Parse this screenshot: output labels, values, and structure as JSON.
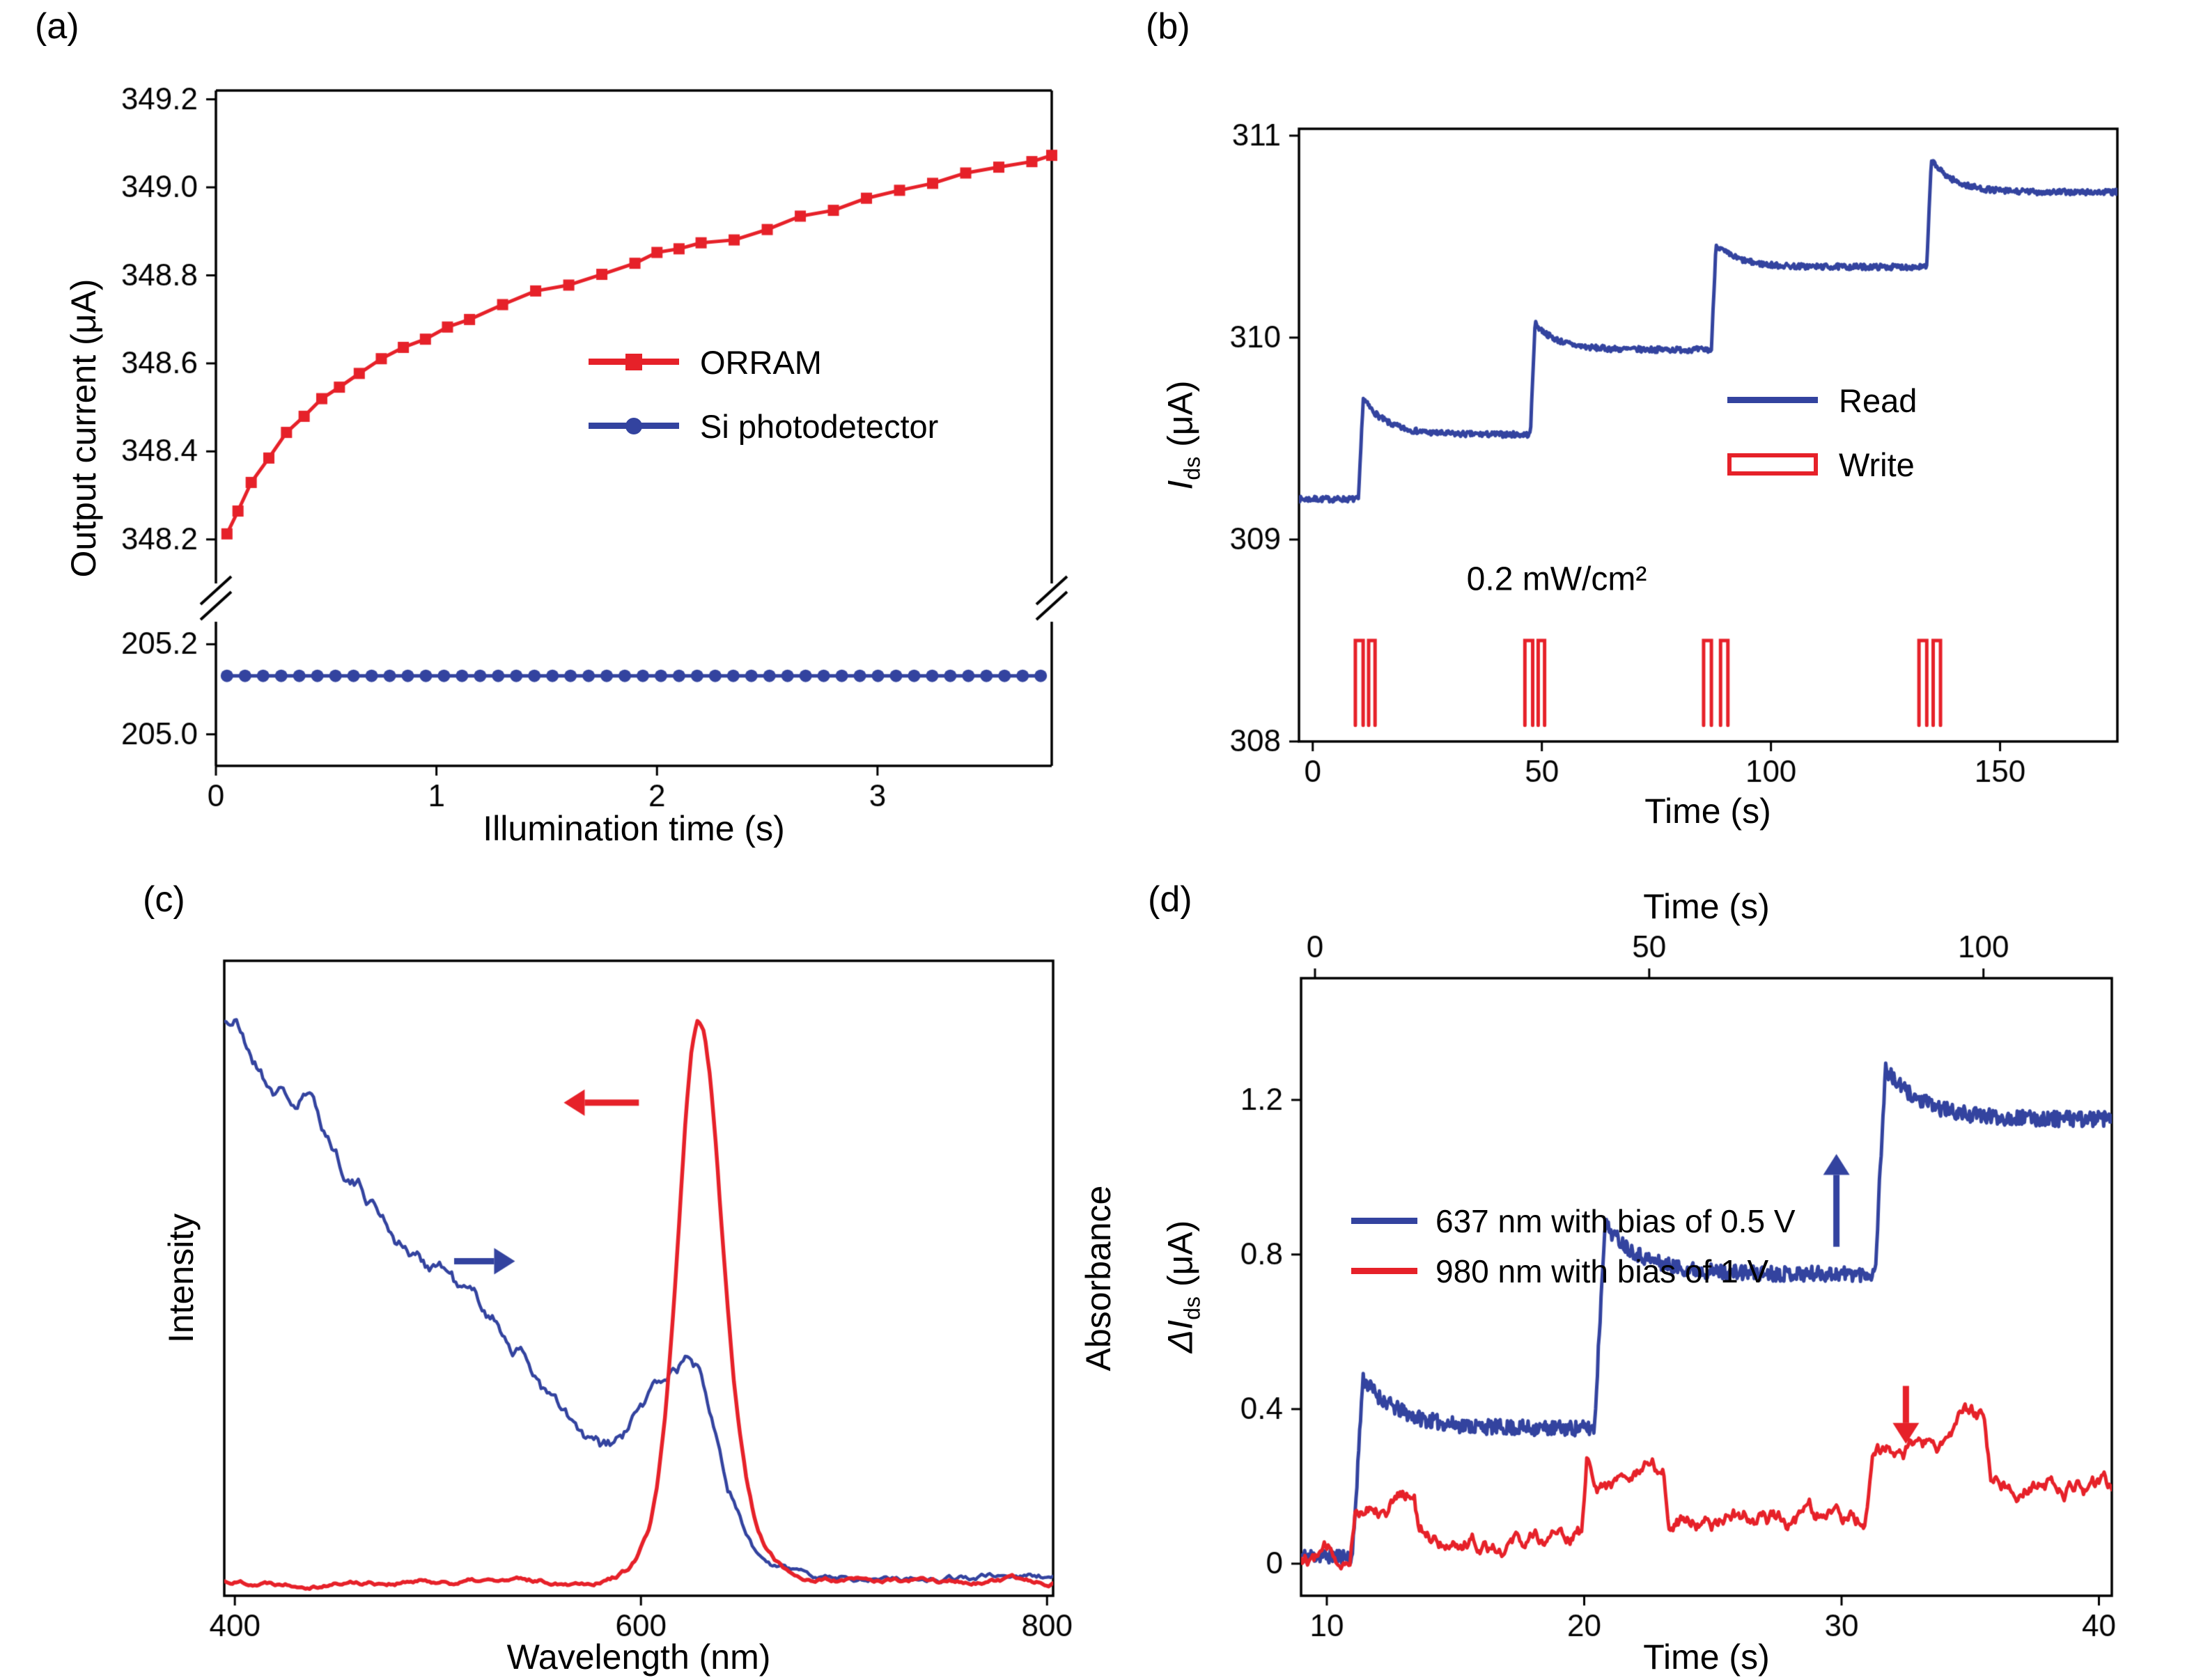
{
  "colors": {
    "red": "#e62129",
    "blue": "#33439f",
    "axis": "#000000"
  },
  "chart_data": [
    {
      "id": "a",
      "type": "line",
      "panel_label": "(a)",
      "xlabel": "Illumination time (s)",
      "ylabel": "Output current (μA)",
      "xlim": [
        0,
        3.79
      ],
      "xticks": [
        0,
        1,
        2,
        3
      ],
      "axis_break": {
        "top_ylim": [
          348.1,
          349.22
        ],
        "top_yticks": [
          349.2,
          349.0,
          348.8,
          348.6,
          348.4,
          348.2
        ],
        "bottom_ylim": [
          204.93,
          205.25
        ],
        "bottom_yticks": [
          205.2,
          205.0
        ]
      },
      "legend": [
        {
          "label": "ORRAM",
          "color": "#e62129",
          "marker": "square"
        },
        {
          "label": "Si photodetector",
          "color": "#33439f",
          "marker": "circle"
        }
      ],
      "series": [
        {
          "name": "ORRAM",
          "color": "#e62129",
          "marker": "square",
          "x": [
            0.05,
            0.1,
            0.16,
            0.24,
            0.32,
            0.4,
            0.48,
            0.56,
            0.65,
            0.75,
            0.85,
            0.95,
            1.05,
            1.15,
            1.3,
            1.45,
            1.6,
            1.75,
            1.9,
            2.0,
            2.1,
            2.2,
            2.35,
            2.5,
            2.65,
            2.8,
            2.95,
            3.1,
            3.25,
            3.4,
            3.55,
            3.7,
            3.79
          ],
          "y": [
            348.21,
            348.27,
            348.33,
            348.39,
            348.44,
            348.48,
            348.52,
            348.55,
            348.58,
            348.61,
            348.64,
            348.66,
            348.68,
            348.7,
            348.73,
            348.76,
            348.78,
            348.8,
            348.83,
            348.85,
            348.86,
            348.87,
            348.88,
            348.91,
            348.93,
            348.95,
            348.97,
            348.99,
            349.01,
            349.03,
            349.05,
            349.06,
            349.07
          ]
        },
        {
          "name": "Si photodetector",
          "color": "#33439f",
          "marker": "circle",
          "constant_y": 205.13,
          "x_start": 0.05,
          "x_end": 3.74,
          "n_markers": 46
        }
      ]
    },
    {
      "id": "b",
      "type": "line",
      "panel_label": "(b)",
      "xlabel": "Time (s)",
      "ylabel": {
        "pre": "I",
        "sub": "ds",
        "post": " (μA)"
      },
      "xlim": [
        -3,
        175.6
      ],
      "xticks": [
        0,
        50,
        100,
        150
      ],
      "ylim": [
        308,
        311.034
      ],
      "yticks": [
        308,
        309,
        310,
        311
      ],
      "annotation": "0.2 mW/cm²",
      "legend": [
        {
          "label": "Read",
          "color": "#33439f",
          "swatch": "line"
        },
        {
          "label": "Write",
          "color": "#e62129",
          "swatch": "pulse"
        }
      ],
      "read": {
        "color": "#33439f",
        "baseline": 309.2,
        "t_end": 175.6,
        "steps": [
          {
            "t": 10,
            "peak": 309.7,
            "plateau": 309.52
          },
          {
            "t": 47.5,
            "peak": 310.07,
            "plateau": 309.94
          },
          {
            "t": 87,
            "peak": 310.46,
            "plateau": 310.35
          },
          {
            "t": 134,
            "peak": 310.88,
            "plateau": 310.72
          }
        ]
      },
      "write": {
        "color": "#e62129",
        "y_base": 308.08,
        "y_top": 308.5,
        "pulses": [
          [
            9.3,
            11.0
          ],
          [
            12.2,
            13.6
          ],
          [
            46.3,
            48.0
          ],
          [
            49.2,
            50.6
          ],
          [
            85.3,
            87.0
          ],
          [
            89.0,
            90.6
          ],
          [
            132.3,
            134.0
          ],
          [
            135.4,
            137.0
          ]
        ]
      }
    },
    {
      "id": "c",
      "type": "line",
      "panel_label": "(c)",
      "xlabel": "Wavelength (nm)",
      "ylabel_left": "Intensity",
      "ylabel_right": "Absorbance",
      "xlim": [
        394.8,
        803
      ],
      "xticks": [
        400,
        600,
        800
      ],
      "ylim": [
        0,
        1.05
      ],
      "series": [
        {
          "name": "absorbance",
          "color": "#33439f",
          "axis": "right",
          "x": [
            400,
            405,
            410,
            415,
            420,
            425,
            430,
            435,
            440,
            445,
            450,
            455,
            460,
            465,
            470,
            475,
            480,
            485,
            490,
            495,
            500,
            505,
            510,
            515,
            520,
            525,
            530,
            535,
            540,
            545,
            550,
            555,
            560,
            565,
            570,
            575,
            580,
            585,
            590,
            595,
            600,
            605,
            610,
            615,
            620,
            625,
            630,
            635,
            640,
            645,
            650,
            655,
            660,
            665,
            670,
            680,
            700,
            720,
            740,
            760,
            780,
            800
          ],
          "y": [
            0.96,
            0.92,
            0.89,
            0.862,
            0.845,
            0.835,
            0.815,
            0.83,
            0.8,
            0.765,
            0.735,
            0.705,
            0.685,
            0.665,
            0.645,
            0.62,
            0.595,
            0.575,
            0.555,
            0.545,
            0.55,
            0.535,
            0.505,
            0.49,
            0.475,
            0.46,
            0.44,
            0.42,
            0.4,
            0.375,
            0.35,
            0.32,
            0.295,
            0.27,
            0.245,
            0.228,
            0.218,
            0.222,
            0.235,
            0.26,
            0.29,
            0.315,
            0.34,
            0.36,
            0.375,
            0.38,
            0.36,
            0.31,
            0.24,
            0.17,
            0.11,
            0.07,
            0.045,
            0.032,
            0.024,
            0.018,
            0.014,
            0.013,
            0.013,
            0.012,
            0.012,
            0.012
          ]
        },
        {
          "name": "emission",
          "color": "#e62129",
          "axis": "left",
          "x": [
            400,
            560,
            575,
            585,
            592,
            598,
            604,
            608,
            612,
            616,
            619,
            622,
            625,
            628,
            631,
            634,
            637,
            640,
            643,
            646,
            649,
            652,
            655,
            658,
            662,
            666,
            670,
            675,
            680,
            690,
            700,
            720,
            760,
            800
          ],
          "y": [
            0.004,
            0.004,
            0.006,
            0.012,
            0.022,
            0.045,
            0.09,
            0.16,
            0.28,
            0.46,
            0.62,
            0.79,
            0.91,
            0.96,
            0.945,
            0.87,
            0.75,
            0.6,
            0.46,
            0.34,
            0.25,
            0.18,
            0.13,
            0.09,
            0.06,
            0.04,
            0.027,
            0.018,
            0.012,
            0.007,
            0.005,
            0.004,
            0.004,
            0.004
          ]
        }
      ],
      "arrows": [
        {
          "color": "#e62129",
          "direction": "left",
          "x_from": 599,
          "x_to": 562,
          "y": 0.82
        },
        {
          "color": "#33439f",
          "direction": "right",
          "x_from": 508,
          "x_to": 538,
          "y": 0.55
        }
      ]
    },
    {
      "id": "d",
      "type": "line",
      "panel_label": "(d)",
      "xlabel_bottom": "Time (s)",
      "xlabel_top": "Time (s)",
      "ylabel": {
        "pre": "ΔI",
        "sub": "ds",
        "post": " (μA)"
      },
      "xlim": [
        9,
        40.5
      ],
      "xticks_bottom": [
        10,
        20,
        30,
        40
      ],
      "top_axis": {
        "lim": [
          -2.08,
          119.2
        ],
        "ticks": [
          0,
          50,
          100
        ]
      },
      "ylim": [
        -0.083,
        1.515
      ],
      "yticks": [
        0,
        0.4,
        0.8,
        1.2
      ],
      "legend": [
        {
          "label": "637 nm with bias of 0.5 V",
          "color": "#33439f"
        },
        {
          "label": "980 nm with bias of 1 V",
          "color": "#e62129"
        }
      ],
      "series": [
        {
          "name": "637 nm with bias of 0.5 V",
          "color": "#33439f",
          "kind": "steps",
          "baseline": 0.02,
          "t_end": 40.5,
          "steps": [
            {
              "t": 11,
              "peak": 0.48,
              "plateau": 0.35
            },
            {
              "t": 20.4,
              "peak": 0.88,
              "plateau": 0.75
            },
            {
              "t": 31.3,
              "peak": 1.28,
              "plateau": 1.15
            }
          ]
        },
        {
          "name": "980 nm with bias of 1 V",
          "color": "#e62129",
          "kind": "points",
          "points": [
            [
              9,
              0.02
            ],
            [
              10.9,
              0.03
            ],
            [
              11.1,
              0.17
            ],
            [
              13.4,
              0.18
            ],
            [
              13.6,
              0.07
            ],
            [
              19.9,
              0.07
            ],
            [
              20.1,
              0.26
            ],
            [
              20.7,
              0.22
            ],
            [
              23.1,
              0.22
            ],
            [
              23.3,
              0.12
            ],
            [
              30.9,
              0.12
            ],
            [
              31.2,
              0.27
            ],
            [
              33.0,
              0.3
            ],
            [
              35.5,
              0.38
            ],
            [
              35.8,
              0.23
            ],
            [
              38.0,
              0.22
            ],
            [
              40.5,
              0.19
            ]
          ]
        }
      ],
      "arrows": [
        {
          "color": "#33439f",
          "direction": "up",
          "x": 29.8,
          "y_from": 0.82,
          "y_to": 1.06
        },
        {
          "color": "#e62129",
          "direction": "down",
          "x": 32.5,
          "y_from": 0.46,
          "y_to": 0.31
        }
      ]
    }
  ]
}
